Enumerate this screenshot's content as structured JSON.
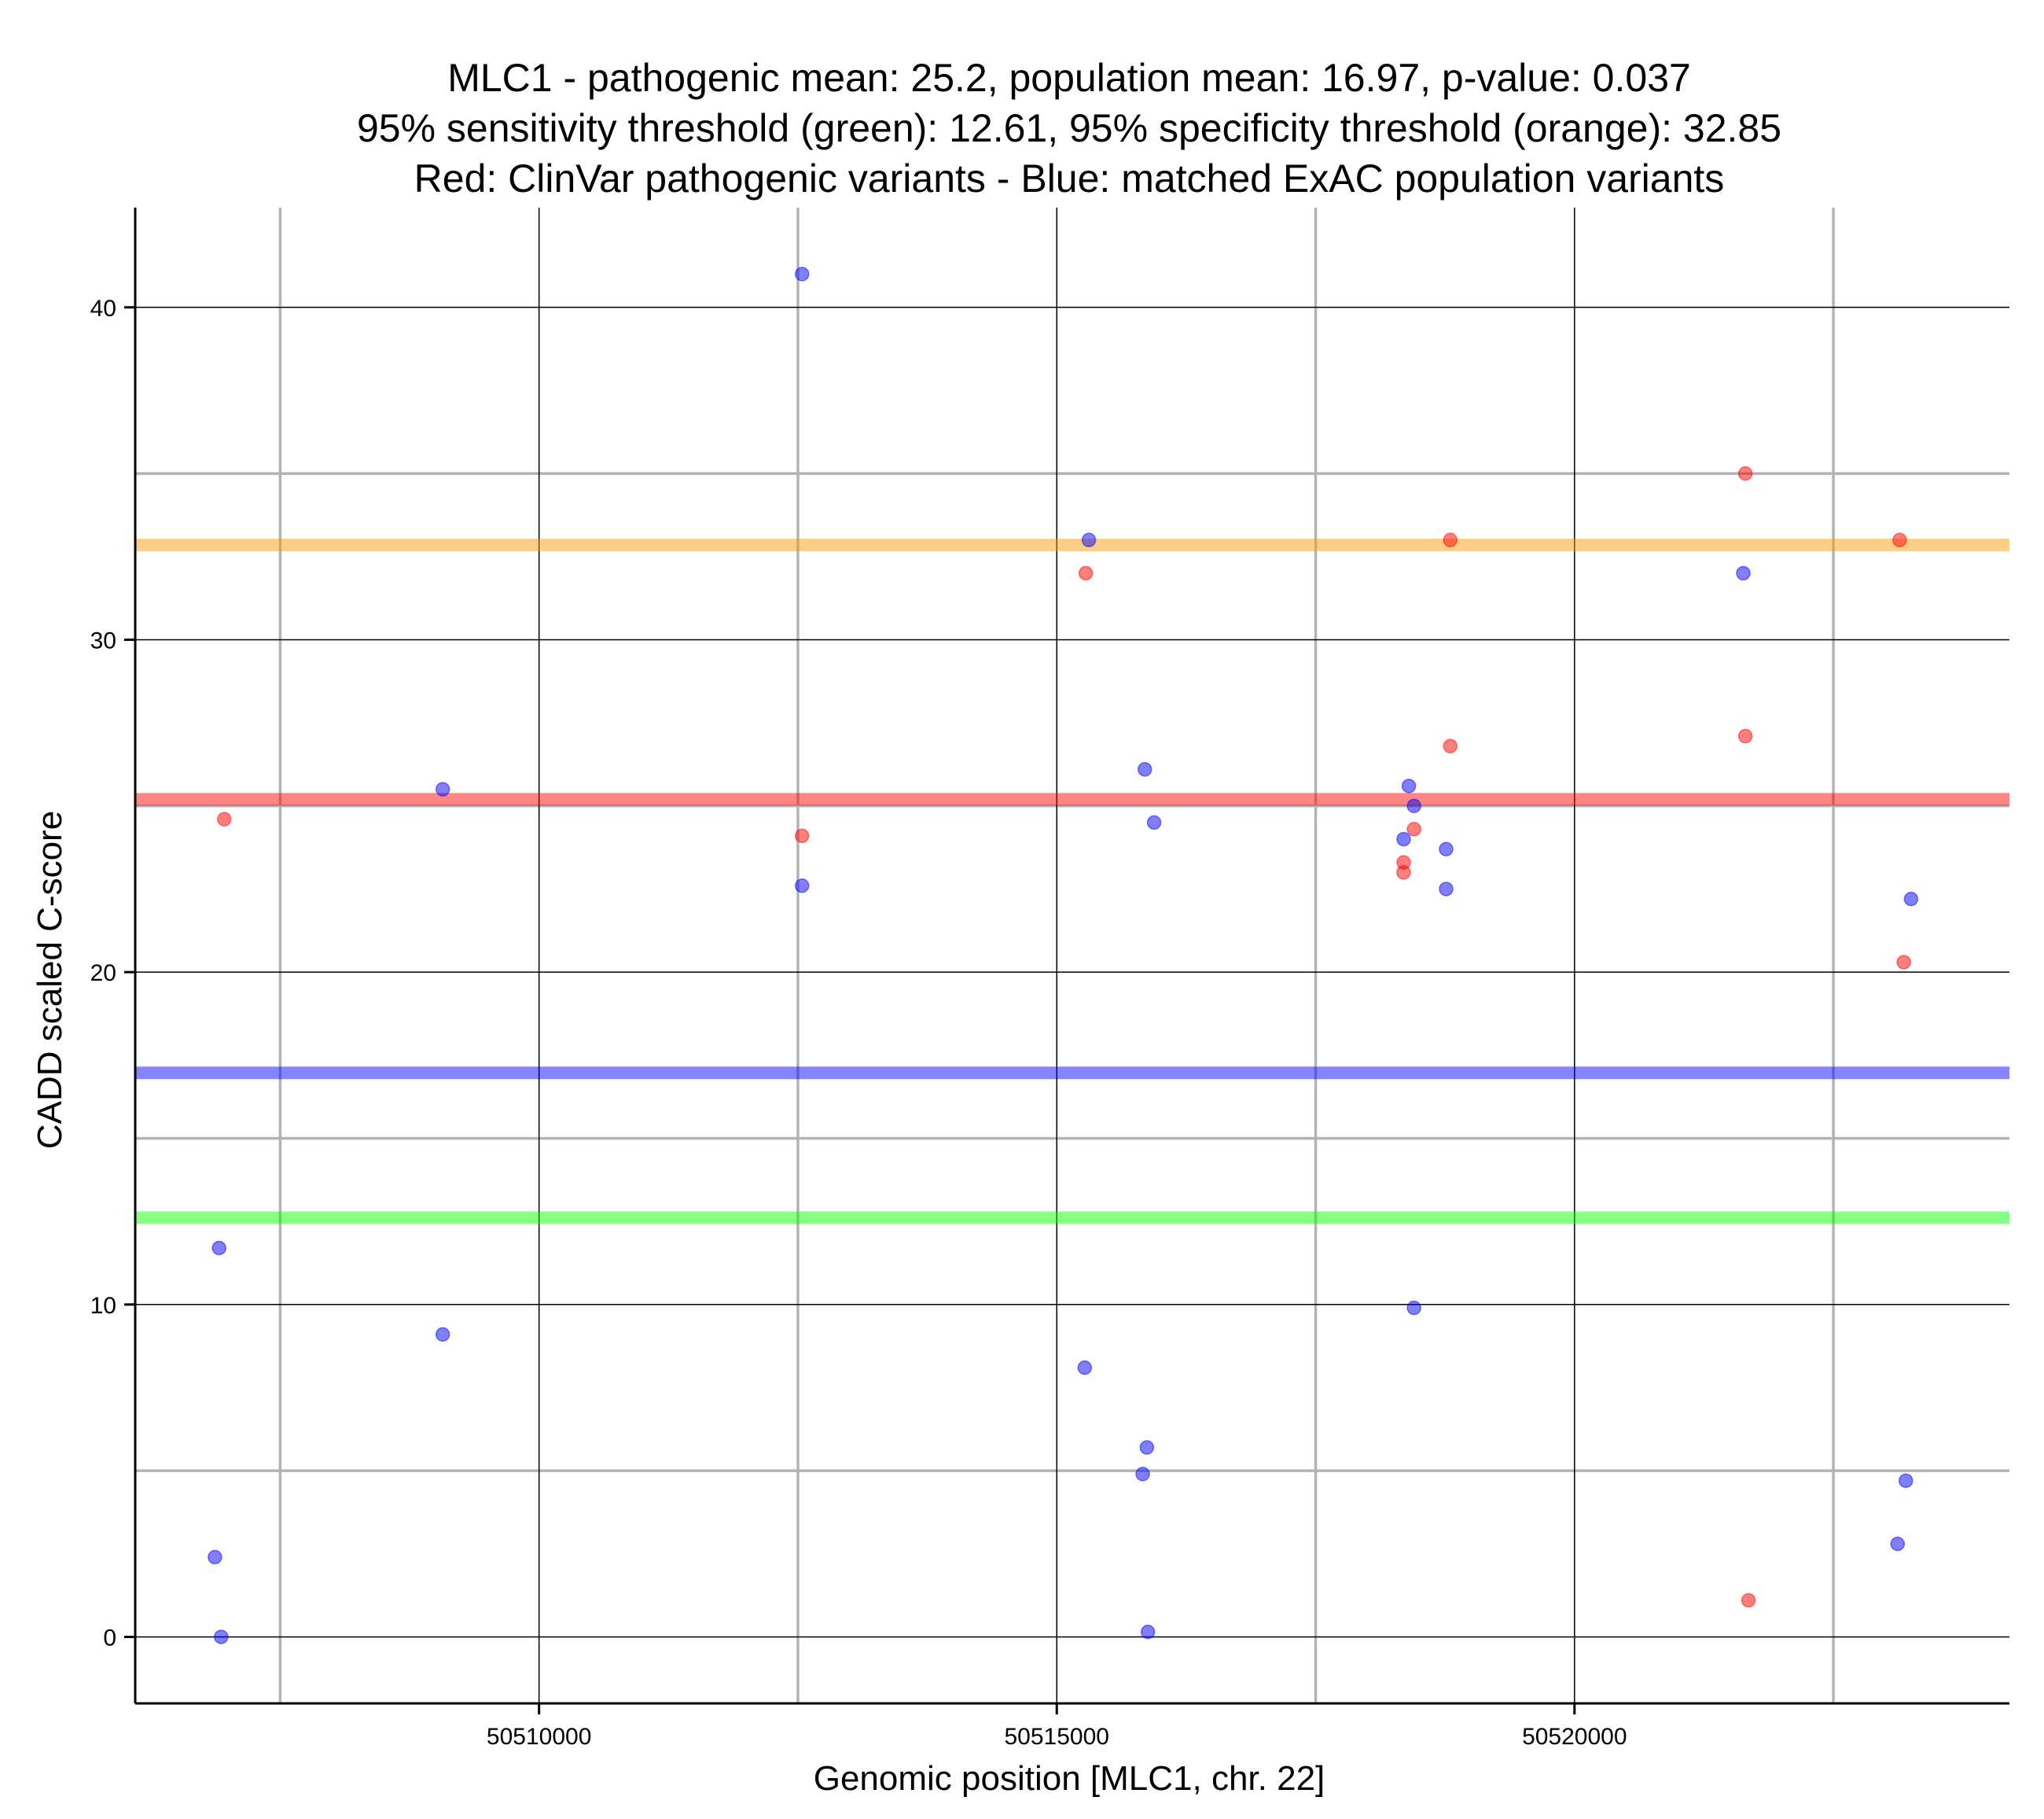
{
  "chart_data": {
    "type": "scatter",
    "title_lines": [
      "MLC1 - pathogenic mean: 25.2, population mean: 16.97, p-value: 0.037",
      "95% sensitivity threshold (green): 12.61, 95% specificity threshold (orange): 32.85",
      "Red: ClinVar pathogenic variants - Blue: matched ExAC population variants"
    ],
    "xlabel": "Genomic position [MLC1, chr. 22]",
    "ylabel": "CADD scaled C-score",
    "xlim": [
      50506100,
      50524200
    ],
    "ylim": [
      -2,
      43
    ],
    "x_ticks": [
      50510000,
      50515000,
      50520000
    ],
    "x_tick_labels": [
      "50510000",
      "50515000",
      "50520000"
    ],
    "x_minor_grid": [
      50507500,
      50512500,
      50517500,
      50522500
    ],
    "y_ticks": [
      0,
      10,
      20,
      30,
      40
    ],
    "y_tick_labels": [
      "0",
      "10",
      "20",
      "30",
      "40"
    ],
    "y_minor_grid": [
      5,
      15,
      25,
      35
    ],
    "grid": true,
    "colors": {
      "pathogenic": "#ff0000",
      "population": "#0000ff",
      "sensitivity": "#00ff00",
      "specificity": "#ff9900",
      "major_grid": "#000000",
      "minor_grid": "#b3b3b3"
    },
    "reference_lines": [
      {
        "name": "specificity-threshold",
        "y": 32.85,
        "color": "#ff9900"
      },
      {
        "name": "pathogenic-mean",
        "y": 25.2,
        "color": "#ff0000"
      },
      {
        "name": "population-mean",
        "y": 16.97,
        "color": "#0000ff"
      },
      {
        "name": "sensitivity-threshold",
        "y": 12.61,
        "color": "#00ff00"
      }
    ],
    "series": [
      {
        "name": "ClinVar pathogenic variants",
        "color": "#ff0000",
        "points": [
          {
            "x": 50506960,
            "y": 24.6
          },
          {
            "x": 50512540,
            "y": 24.1
          },
          {
            "x": 50515280,
            "y": 32.0
          },
          {
            "x": 50518350,
            "y": 23.3
          },
          {
            "x": 50518350,
            "y": 23.0
          },
          {
            "x": 50518450,
            "y": 24.3
          },
          {
            "x": 50518800,
            "y": 26.8
          },
          {
            "x": 50518800,
            "y": 33.0
          },
          {
            "x": 50521650,
            "y": 35.0
          },
          {
            "x": 50521650,
            "y": 27.1
          },
          {
            "x": 50521680,
            "y": 1.1
          },
          {
            "x": 50523140,
            "y": 33.0
          },
          {
            "x": 50523180,
            "y": 20.3
          }
        ]
      },
      {
        "name": "matched ExAC population variants",
        "color": "#0000ff",
        "points": [
          {
            "x": 50506870,
            "y": 2.4
          },
          {
            "x": 50506910,
            "y": 11.7
          },
          {
            "x": 50506930,
            "y": 0.0
          },
          {
            "x": 50509070,
            "y": 25.5
          },
          {
            "x": 50509070,
            "y": 9.1
          },
          {
            "x": 50512540,
            "y": 41.0
          },
          {
            "x": 50512540,
            "y": 22.6
          },
          {
            "x": 50515270,
            "y": 8.1
          },
          {
            "x": 50515310,
            "y": 33.0
          },
          {
            "x": 50515830,
            "y": 4.9
          },
          {
            "x": 50515850,
            "y": 26.1
          },
          {
            "x": 50515870,
            "y": 5.7
          },
          {
            "x": 50515880,
            "y": 0.15
          },
          {
            "x": 50515940,
            "y": 24.5
          },
          {
            "x": 50518350,
            "y": 24.0
          },
          {
            "x": 50518400,
            "y": 25.6
          },
          {
            "x": 50518450,
            "y": 25.0
          },
          {
            "x": 50518450,
            "y": 9.9
          },
          {
            "x": 50518760,
            "y": 23.7
          },
          {
            "x": 50518760,
            "y": 22.5
          },
          {
            "x": 50521630,
            "y": 32.0
          },
          {
            "x": 50523120,
            "y": 2.8
          },
          {
            "x": 50523200,
            "y": 4.7
          },
          {
            "x": 50523250,
            "y": 22.2
          }
        ]
      }
    ]
  }
}
